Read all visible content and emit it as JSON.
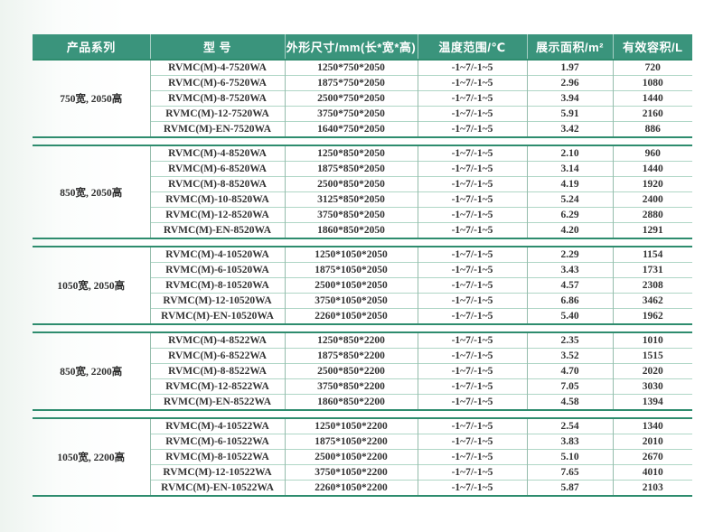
{
  "table": {
    "headers": [
      "产品系列",
      "型 号",
      "外形尺寸/mm(长*宽*高)",
      "温度范围/℃",
      "展示面积/m²",
      "有效容积/L"
    ],
    "groups": [
      {
        "series": "750宽, 2050高",
        "rows": [
          [
            "RVMC(M)-4-7520WA",
            "1250*750*2050",
            "-1~7/-1~5",
            "1.97",
            "720"
          ],
          [
            "RVMC(M)-6-7520WA",
            "1875*750*2050",
            "-1~7/-1~5",
            "2.96",
            "1080"
          ],
          [
            "RVMC(M)-8-7520WA",
            "2500*750*2050",
            "-1~7/-1~5",
            "3.94",
            "1440"
          ],
          [
            "RVMC(M)-12-7520WA",
            "3750*750*2050",
            "-1~7/-1~5",
            "5.91",
            "2160"
          ],
          [
            "RVMC(M)-EN-7520WA",
            "1640*750*2050",
            "-1~7/-1~5",
            "3.42",
            "886"
          ]
        ]
      },
      {
        "series": "850宽, 2050高",
        "rows": [
          [
            "RVMC(M)-4-8520WA",
            "1250*850*2050",
            "-1~7/-1~5",
            "2.10",
            "960"
          ],
          [
            "RVMC(M)-6-8520WA",
            "1875*850*2050",
            "-1~7/-1~5",
            "3.14",
            "1440"
          ],
          [
            "RVMC(M)-8-8520WA",
            "2500*850*2050",
            "-1~7/-1~5",
            "4.19",
            "1920"
          ],
          [
            "RVMC(M)-10-8520WA",
            "3125*850*2050",
            "-1~7/-1~5",
            "5.24",
            "2400"
          ],
          [
            "RVMC(M)-12-8520WA",
            "3750*850*2050",
            "-1~7/-1~5",
            "6.29",
            "2880"
          ],
          [
            "RVMC(M)-EN-8520WA",
            "1860*850*2050",
            "-1~7/-1~5",
            "4.20",
            "1291"
          ]
        ]
      },
      {
        "series": "1050宽, 2050高",
        "rows": [
          [
            "RVMC(M)-4-10520WA",
            "1250*1050*2050",
            "-1~7/-1~5",
            "2.29",
            "1154"
          ],
          [
            "RVMC(M)-6-10520WA",
            "1875*1050*2050",
            "-1~7/-1~5",
            "3.43",
            "1731"
          ],
          [
            "RVMC(M)-8-10520WA",
            "2500*1050*2050",
            "-1~7/-1~5",
            "4.57",
            "2308"
          ],
          [
            "RVMC(M)-12-10520WA",
            "3750*1050*2050",
            "-1~7/-1~5",
            "6.86",
            "3462"
          ],
          [
            "RVMC(M)-EN-10520WA",
            "2260*1050*2050",
            "-1~7/-1~5",
            "5.40",
            "1962"
          ]
        ]
      },
      {
        "series": "850宽, 2200高",
        "rows": [
          [
            "RVMC(M)-4-8522WA",
            "1250*850*2200",
            "-1~7/-1~5",
            "2.35",
            "1010"
          ],
          [
            "RVMC(M)-6-8522WA",
            "1875*850*2200",
            "-1~7/-1~5",
            "3.52",
            "1515"
          ],
          [
            "RVMC(M)-8-8522WA",
            "2500*850*2200",
            "-1~7/-1~5",
            "4.70",
            "2020"
          ],
          [
            "RVMC(M)-12-8522WA",
            "3750*850*2200",
            "-1~7/-1~5",
            "7.05",
            "3030"
          ],
          [
            "RVMC(M)-EN-8522WA",
            "1860*850*2200",
            "-1~7/-1~5",
            "4.58",
            "1394"
          ]
        ]
      },
      {
        "series": "1050宽, 2200高",
        "rows": [
          [
            "RVMC(M)-4-10522WA",
            "1250*1050*2200",
            "-1~7/-1~5",
            "2.54",
            "1340"
          ],
          [
            "RVMC(M)-6-10522WA",
            "1875*1050*2200",
            "-1~7/-1~5",
            "3.83",
            "2010"
          ],
          [
            "RVMC(M)-8-10522WA",
            "2500*1050*2200",
            "-1~7/-1~5",
            "5.10",
            "2670"
          ],
          [
            "RVMC(M)-12-10522WA",
            "3750*1050*2200",
            "-1~7/-1~5",
            "7.65",
            "4010"
          ],
          [
            "RVMC(M)-EN-10522WA",
            "2260*1050*2200",
            "-1~7/-1~5",
            "5.87",
            "2103"
          ]
        ]
      }
    ]
  },
  "colors": {
    "header_bg": "#3A947C",
    "header_text": "#FFFFFF",
    "group_border": "#2E8C6E",
    "row_line": "#AFD6C6",
    "column_line": "#95BCAC",
    "body_text": "#333333"
  }
}
